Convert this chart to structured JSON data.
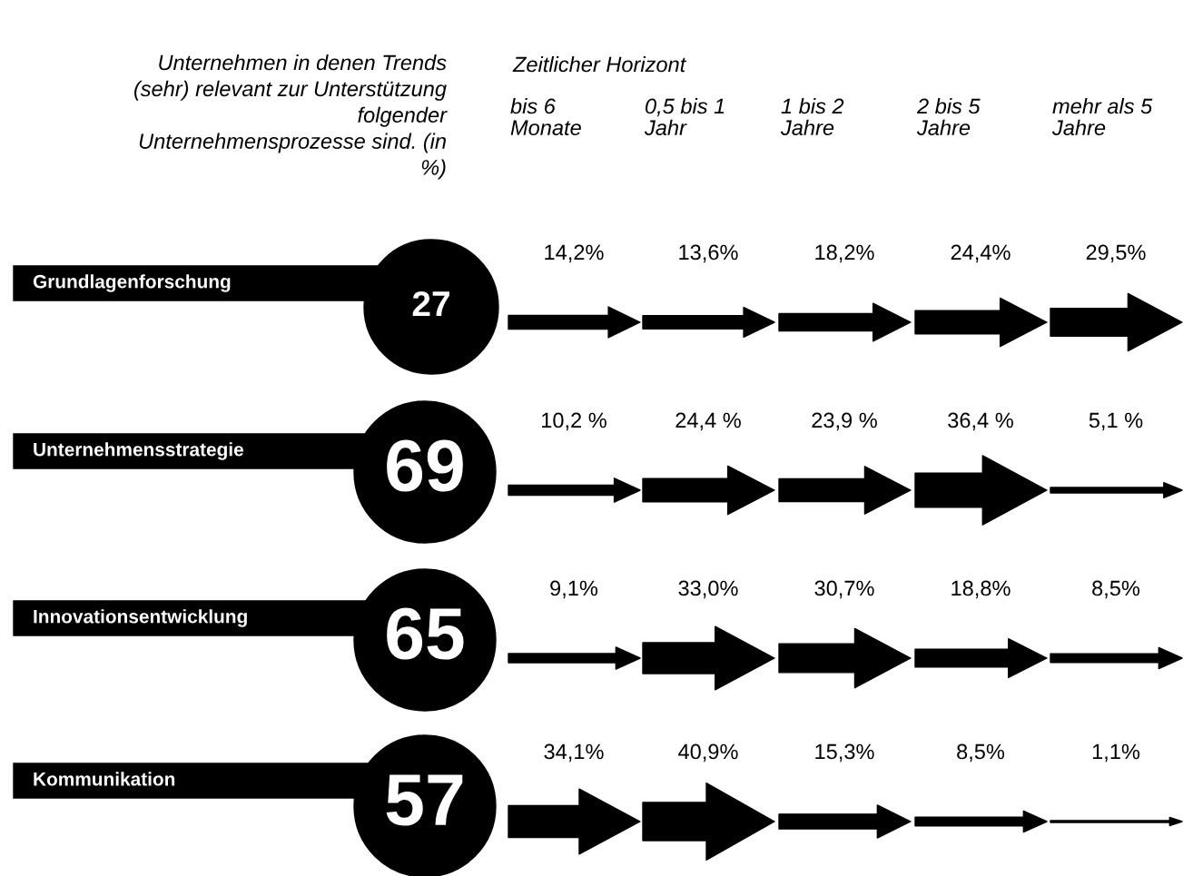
{
  "chart_data": {
    "type": "other",
    "title": "Unternehmen in denen Trends (sehr) relevant zur Unterstützung folgender Unternehmensprozesse sind. (in %)",
    "xlabel": "Zeitlicher Horizont",
    "categories": [
      "bis 6\nMonate",
      "0,5 bis 1\nJahr",
      "1 bis 2\nJahre",
      "2 bis 5\nJahre",
      "mehr als 5\nJahre"
    ],
    "y2_categories": [
      "27",
      "69",
      "65",
      "57"
    ],
    "series": [
      {
        "name": "Grundlagenforschung",
        "values": [
          14.2,
          13.6,
          18.2,
          24.4,
          29.5
        ],
        "value_labels": [
          "14,2%",
          "13,6%",
          "18,2%",
          "24,4%",
          "29,5%"
        ]
      },
      {
        "name": "Unternehmensstrategie",
        "values": [
          10.2,
          24.4,
          23.9,
          36.4,
          5.1
        ],
        "value_labels": [
          "10,2 %",
          "24,4 %",
          "23,9 %",
          "36,4 %",
          "5,1 %"
        ]
      },
      {
        "name": "Innovationsentwicklung",
        "values": [
          9.1,
          33.0,
          30.7,
          18.8,
          8.5
        ],
        "value_labels": [
          "9,1%",
          "33,0%",
          "30,7%",
          "18,8%",
          "8,5%"
        ]
      },
      {
        "name": "Kommunikation",
        "values": [
          34.1,
          40.9,
          15.3,
          8.5,
          1.1
        ],
        "value_labels": [
          "34,1%",
          "40,9%",
          "15,3%",
          "8,5%",
          "1,1%"
        ]
      }
    ]
  }
}
